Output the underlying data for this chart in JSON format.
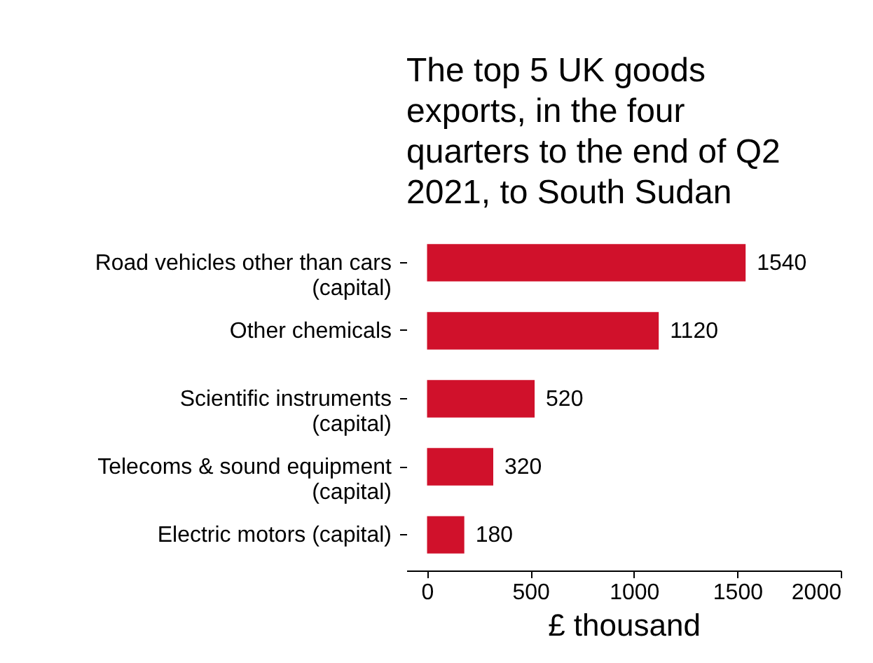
{
  "chart_data": {
    "type": "bar",
    "orientation": "horizontal",
    "title": "The top 5 UK goods exports, in the four quarters to the end of Q2 2021, to South Sudan",
    "xlabel": "£ thousand",
    "categories": [
      "Road vehicles other than cars (capital)",
      "Other chemicals",
      "Scientific instruments (capital)",
      "Telecoms & sound equipment (capital)",
      "Electric motors (capital)"
    ],
    "values": [
      1540,
      1120,
      520,
      320,
      180
    ],
    "color": "#d0112b",
    "xlim": [
      -100,
      2000
    ],
    "xticks": [
      0,
      500,
      1000,
      1500,
      2000
    ],
    "data_labels": true,
    "grid": false
  }
}
